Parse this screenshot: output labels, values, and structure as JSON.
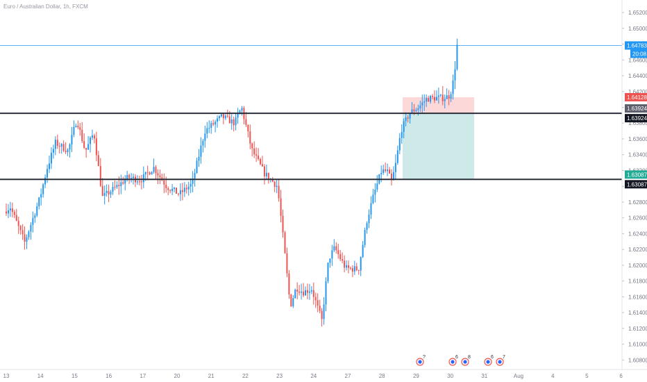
{
  "chart_data": {
    "type": "candlestick",
    "title": "Euro / Australian Dollar, 1h, FXCM",
    "x_tick_labels": [
      "13",
      "14",
      "15",
      "16",
      "17",
      "20",
      "21",
      "22",
      "23",
      "24",
      "27",
      "28",
      "29",
      "30",
      "31",
      "Aug",
      "4",
      "5",
      "6"
    ],
    "y_tick_labels": [
      "1.60800",
      "1.61000",
      "1.61200",
      "1.61400",
      "1.61600",
      "1.61800",
      "1.62000",
      "1.62200",
      "1.62400",
      "1.62600",
      "1.62800",
      "1.63000",
      "1.63200",
      "1.63400",
      "1.63600",
      "1.63800",
      "1.64000",
      "1.64200",
      "1.64400",
      "1.64600",
      "1.64800",
      "1.65000",
      "1.65200"
    ],
    "ylim": [
      1.6075,
      1.6535
    ],
    "price_anchors": [
      {
        "t": 0,
        "p": 1.6268
      },
      {
        "t": 0.7,
        "p": 1.6274
      },
      {
        "t": 2.4,
        "p": 1.6229
      },
      {
        "t": 4.2,
        "p": 1.6286
      },
      {
        "t": 5,
        "p": 1.6322
      },
      {
        "t": 6,
        "p": 1.6355
      },
      {
        "t": 7.5,
        "p": 1.6345
      },
      {
        "t": 8.5,
        "p": 1.6385
      },
      {
        "t": 9.5,
        "p": 1.6344
      },
      {
        "t": 10.5,
        "p": 1.6368
      },
      {
        "t": 11.5,
        "p": 1.6286
      },
      {
        "t": 13,
        "p": 1.6298
      },
      {
        "t": 14.5,
        "p": 1.6311
      },
      {
        "t": 16,
        "p": 1.6308
      },
      {
        "t": 17.5,
        "p": 1.6324
      },
      {
        "t": 19,
        "p": 1.63
      },
      {
        "t": 20.5,
        "p": 1.629
      },
      {
        "t": 22,
        "p": 1.6303
      },
      {
        "t": 23.5,
        "p": 1.637
      },
      {
        "t": 25.5,
        "p": 1.6388
      },
      {
        "t": 27,
        "p": 1.638
      },
      {
        "t": 27.8,
        "p": 1.64
      },
      {
        "t": 29,
        "p": 1.6346
      },
      {
        "t": 30.5,
        "p": 1.6316
      },
      {
        "t": 32,
        "p": 1.63
      },
      {
        "t": 32.5,
        "p": 1.6252
      },
      {
        "t": 33.5,
        "p": 1.6148
      },
      {
        "t": 34.2,
        "p": 1.6172
      },
      {
        "t": 35,
        "p": 1.6166
      },
      {
        "t": 36,
        "p": 1.617
      },
      {
        "t": 37.2,
        "p": 1.613
      },
      {
        "t": 38,
        "p": 1.6208
      },
      {
        "t": 38.7,
        "p": 1.6222
      },
      {
        "t": 40,
        "p": 1.6196
      },
      {
        "t": 41.5,
        "p": 1.6195
      },
      {
        "t": 42.5,
        "p": 1.6258
      },
      {
        "t": 43.3,
        "p": 1.629
      },
      {
        "t": 44.2,
        "p": 1.632
      },
      {
        "t": 45,
        "p": 1.6318
      },
      {
        "t": 45.3,
        "p": 1.6303
      },
      {
        "t": 45.8,
        "p": 1.6325
      },
      {
        "t": 46.5,
        "p": 1.6372
      },
      {
        "t": 47.5,
        "p": 1.6393
      },
      {
        "t": 48.5,
        "p": 1.64
      },
      {
        "t": 49.5,
        "p": 1.6411
      },
      {
        "t": 50.5,
        "p": 1.6412
      },
      {
        "t": 51.5,
        "p": 1.6412
      },
      {
        "t": 52.2,
        "p": 1.6415
      },
      {
        "t": 52.7,
        "p": 1.6438
      },
      {
        "t": 53.0,
        "p": 1.6478
      }
    ],
    "price_range": {
      "low": 1.6104,
      "high": 1.649
    },
    "horizontal_lines": [
      {
        "price": 1.63924,
        "label": "1.63924"
      },
      {
        "price": 1.63087,
        "label": "1.63087"
      }
    ],
    "current_price_line": {
      "price": 1.64783,
      "label": "1.64783",
      "countdown": "20:08"
    },
    "position_tool": {
      "stop": 1.64128,
      "entry": 1.63924,
      "target": 1.63087,
      "labels": {
        "stop": "1.64128",
        "entry": "1.63924",
        "target": "1.63087"
      }
    },
    "event_markers": [
      "?",
      "6",
      "8",
      "6",
      "7"
    ],
    "colors": {
      "up": "#2196f3",
      "down": "#ef5350",
      "sr_line": "#2a2e39",
      "current_line": "#2196f3",
      "stop_zone": "#fcd8d8",
      "target_zone": "#cdeae9",
      "grid": "#e0e3eb",
      "axis_text": "#787b86"
    }
  }
}
